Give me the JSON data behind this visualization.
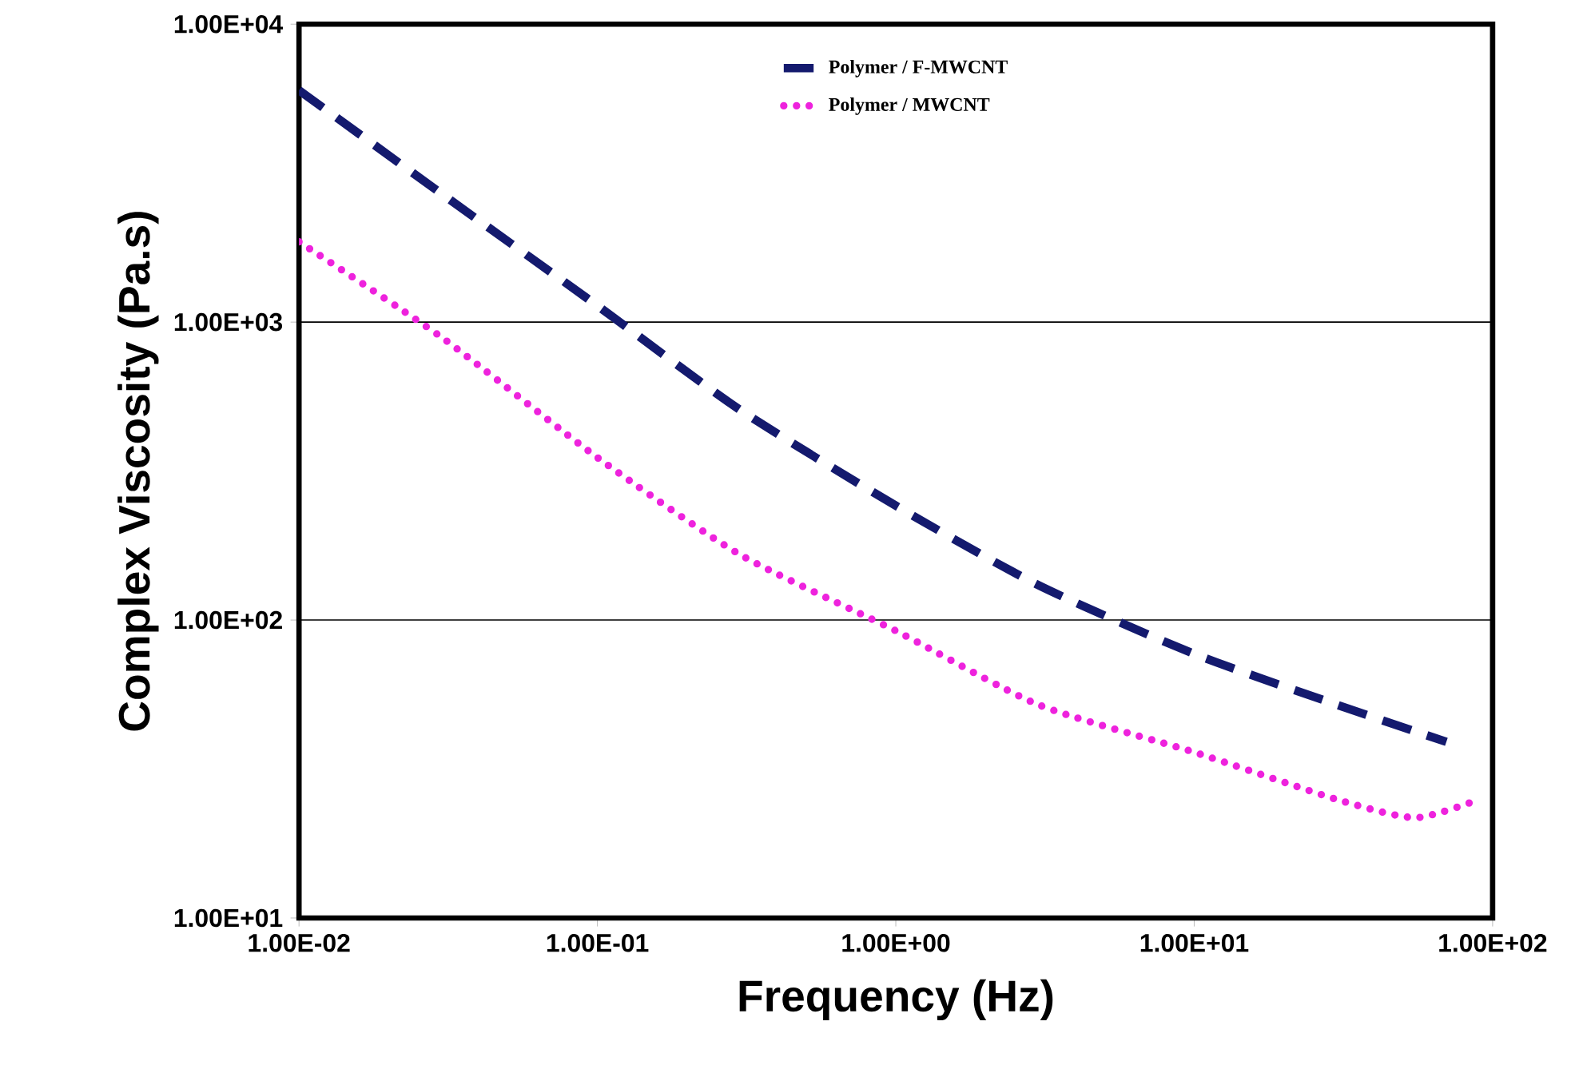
{
  "chart_data": {
    "type": "line",
    "xlabel": "Frequency (Hz)",
    "ylabel": "Complex Viscosity (Pa.s)",
    "log": "xy",
    "grid": "y",
    "legend": "top",
    "xlim": [
      0.01,
      100
    ],
    "ylim": [
      10,
      10000
    ],
    "xticks": [
      {
        "value": 0.01,
        "label": "1.00E-02"
      },
      {
        "value": 0.1,
        "label": "1.00E-01"
      },
      {
        "value": 1,
        "label": "1.00E+00"
      },
      {
        "value": 10,
        "label": "1.00E+01"
      },
      {
        "value": 100,
        "label": "1.00E+02"
      }
    ],
    "yticks": [
      {
        "value": 10,
        "label": "1.00E+01"
      },
      {
        "value": 100,
        "label": "1.00E+02"
      },
      {
        "value": 1000,
        "label": "1.00E+03"
      },
      {
        "value": 10000,
        "label": "1.00E+04"
      }
    ],
    "series": [
      {
        "name": "Polymer / F-MWCNT",
        "color": "#141a6e",
        "line_style": "dashed",
        "x": [
          0.01,
          0.03,
          0.1,
          0.3,
          1,
          3,
          10,
          30,
          70
        ],
        "values": [
          6000,
          2700,
          1135,
          508,
          242,
          131,
          77,
          52,
          39
        ]
      },
      {
        "name": "Polymer / MWCNT",
        "color": "#ee22dd",
        "line_style": "dotted",
        "x": [
          0.01,
          0.03,
          0.1,
          0.3,
          1,
          3,
          10,
          30,
          55,
          90
        ],
        "values": [
          1860,
          890,
          351,
          166,
          92,
          52,
          36,
          25,
          21.7,
          25
        ]
      }
    ]
  }
}
